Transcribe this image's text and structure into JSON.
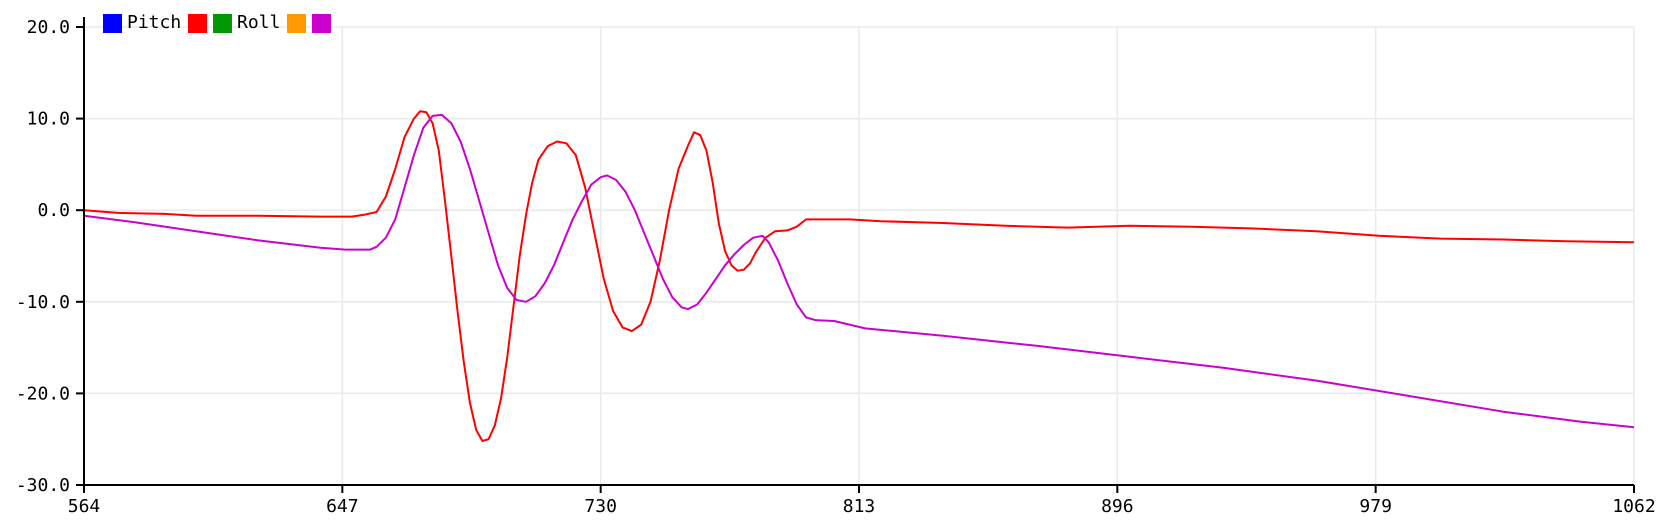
{
  "chart_data": {
    "type": "line",
    "title": "",
    "xlabel": "",
    "ylabel": "",
    "xlim": [
      564,
      1062
    ],
    "ylim": [
      -30,
      20
    ],
    "grid": true,
    "legend_position": "top-left",
    "x_ticks": [
      "564",
      "647",
      "730",
      "813",
      "896",
      "979",
      "1062"
    ],
    "y_ticks": [
      "20.0",
      "10.0",
      "0.0",
      "-10.0",
      "-20.0",
      "-30.0"
    ],
    "legend": [
      {
        "label": "Pitch",
        "color": "#0000ff"
      },
      {
        "label": "",
        "color": "#ff0000"
      },
      {
        "label": "Roll",
        "color": "#009900"
      },
      {
        "label": "",
        "color": "#ff9900"
      },
      {
        "label": "",
        "color": "#cc00cc"
      }
    ],
    "series": [
      {
        "color": "#ff0000",
        "points": [
          [
            564,
            0.0
          ],
          [
            575,
            -0.3
          ],
          [
            590,
            -0.4
          ],
          [
            600,
            -0.6
          ],
          [
            620,
            -0.6
          ],
          [
            640,
            -0.7
          ],
          [
            650,
            -0.7
          ],
          [
            654,
            -0.5
          ],
          [
            658,
            -0.2
          ],
          [
            661,
            1.5
          ],
          [
            664,
            4.5
          ],
          [
            667,
            8.0
          ],
          [
            670,
            10.0
          ],
          [
            672,
            10.8
          ],
          [
            674,
            10.7
          ],
          [
            676,
            9.5
          ],
          [
            678,
            6.5
          ],
          [
            680,
            1.0
          ],
          [
            682,
            -5.0
          ],
          [
            684,
            -11.0
          ],
          [
            686,
            -16.5
          ],
          [
            688,
            -21.0
          ],
          [
            690,
            -24.0
          ],
          [
            692,
            -25.2
          ],
          [
            694,
            -25.0
          ],
          [
            696,
            -23.5
          ],
          [
            698,
            -20.5
          ],
          [
            700,
            -16.0
          ],
          [
            702,
            -10.5
          ],
          [
            704,
            -5.0
          ],
          [
            706,
            -0.5
          ],
          [
            708,
            3.0
          ],
          [
            710,
            5.5
          ],
          [
            713,
            7.0
          ],
          [
            716,
            7.5
          ],
          [
            719,
            7.3
          ],
          [
            722,
            6.0
          ],
          [
            725,
            2.5
          ],
          [
            728,
            -2.5
          ],
          [
            731,
            -7.5
          ],
          [
            734,
            -11.0
          ],
          [
            737,
            -12.8
          ],
          [
            740,
            -13.2
          ],
          [
            743,
            -12.5
          ],
          [
            746,
            -10.0
          ],
          [
            749,
            -5.5
          ],
          [
            752,
            0.0
          ],
          [
            755,
            4.5
          ],
          [
            758,
            7.0
          ],
          [
            760,
            8.5
          ],
          [
            762,
            8.2
          ],
          [
            764,
            6.5
          ],
          [
            766,
            3.0
          ],
          [
            768,
            -1.5
          ],
          [
            770,
            -4.5
          ],
          [
            772,
            -6.0
          ],
          [
            774,
            -6.6
          ],
          [
            776,
            -6.5
          ],
          [
            778,
            -5.8
          ],
          [
            780,
            -4.5
          ],
          [
            783,
            -3.0
          ],
          [
            786,
            -2.3
          ],
          [
            790,
            -2.2
          ],
          [
            793,
            -1.8
          ],
          [
            796,
            -1.0
          ],
          [
            810,
            -1.0
          ],
          [
            820,
            -1.2
          ],
          [
            840,
            -1.4
          ],
          [
            860,
            -1.7
          ],
          [
            880,
            -1.9
          ],
          [
            900,
            -1.7
          ],
          [
            920,
            -1.8
          ],
          [
            940,
            -2.0
          ],
          [
            960,
            -2.3
          ],
          [
            980,
            -2.8
          ],
          [
            1000,
            -3.1
          ],
          [
            1020,
            -3.2
          ],
          [
            1040,
            -3.4
          ],
          [
            1062,
            -3.5
          ]
        ]
      },
      {
        "color": "#cc00cc",
        "points": [
          [
            564,
            -0.6
          ],
          [
            580,
            -1.3
          ],
          [
            600,
            -2.3
          ],
          [
            620,
            -3.3
          ],
          [
            640,
            -4.1
          ],
          [
            648,
            -4.3
          ],
          [
            656,
            -4.3
          ],
          [
            658,
            -4.0
          ],
          [
            661,
            -3.0
          ],
          [
            664,
            -1.0
          ],
          [
            667,
            2.5
          ],
          [
            670,
            6.0
          ],
          [
            673,
            9.0
          ],
          [
            676,
            10.3
          ],
          [
            679,
            10.4
          ],
          [
            682,
            9.5
          ],
          [
            685,
            7.5
          ],
          [
            688,
            4.5
          ],
          [
            691,
            1.0
          ],
          [
            694,
            -2.5
          ],
          [
            697,
            -6.0
          ],
          [
            700,
            -8.5
          ],
          [
            703,
            -9.8
          ],
          [
            706,
            -10.0
          ],
          [
            709,
            -9.4
          ],
          [
            712,
            -8.0
          ],
          [
            715,
            -6.0
          ],
          [
            718,
            -3.5
          ],
          [
            721,
            -1.0
          ],
          [
            724,
            1.0
          ],
          [
            727,
            2.8
          ],
          [
            730,
            3.6
          ],
          [
            732,
            3.8
          ],
          [
            735,
            3.3
          ],
          [
            738,
            2.0
          ],
          [
            741,
            0.0
          ],
          [
            744,
            -2.5
          ],
          [
            747,
            -5.0
          ],
          [
            750,
            -7.5
          ],
          [
            753,
            -9.5
          ],
          [
            756,
            -10.6
          ],
          [
            758,
            -10.8
          ],
          [
            761,
            -10.3
          ],
          [
            764,
            -9.0
          ],
          [
            767,
            -7.5
          ],
          [
            770,
            -6.0
          ],
          [
            773,
            -4.8
          ],
          [
            776,
            -3.8
          ],
          [
            779,
            -3.0
          ],
          [
            782,
            -2.8
          ],
          [
            784,
            -3.5
          ],
          [
            787,
            -5.5
          ],
          [
            790,
            -8.0
          ],
          [
            793,
            -10.3
          ],
          [
            796,
            -11.7
          ],
          [
            799,
            -12.0
          ],
          [
            805,
            -12.1
          ],
          [
            815,
            -12.9
          ],
          [
            840,
            -13.7
          ],
          [
            870,
            -14.8
          ],
          [
            900,
            -16.0
          ],
          [
            930,
            -17.2
          ],
          [
            960,
            -18.6
          ],
          [
            990,
            -20.3
          ],
          [
            1020,
            -22.0
          ],
          [
            1045,
            -23.1
          ],
          [
            1062,
            -23.7
          ]
        ]
      }
    ]
  }
}
